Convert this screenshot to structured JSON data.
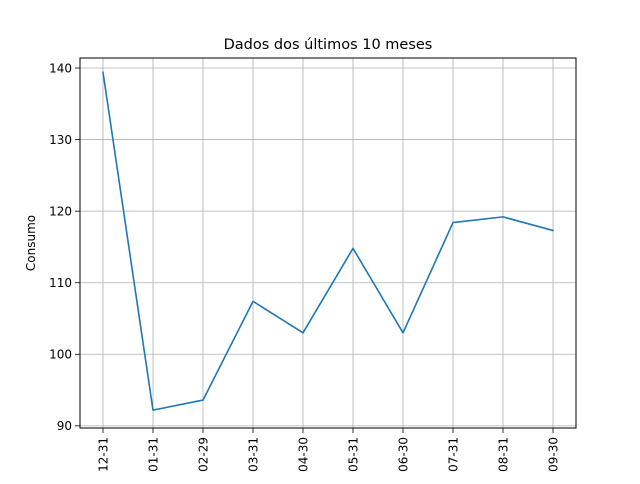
{
  "chart_data": {
    "type": "line",
    "title": "Dados dos últimos 10 meses",
    "xlabel": "",
    "ylabel": "Consumo",
    "categories": [
      "12-31",
      "01-31",
      "02-29",
      "03-31",
      "04-30",
      "05-31",
      "06-30",
      "07-31",
      "08-31",
      "09-30"
    ],
    "series": [
      {
        "values": [
          139.4,
          92.2,
          93.6,
          107.4,
          103.0,
          114.8,
          103.0,
          118.4,
          119.2,
          117.3
        ],
        "color": "#1f77b4"
      }
    ],
    "ylim": [
      89.7,
      141.4
    ],
    "yticks": [
      90,
      100,
      110,
      120,
      130,
      140
    ],
    "grid": true,
    "xtick_rotation": 90
  }
}
